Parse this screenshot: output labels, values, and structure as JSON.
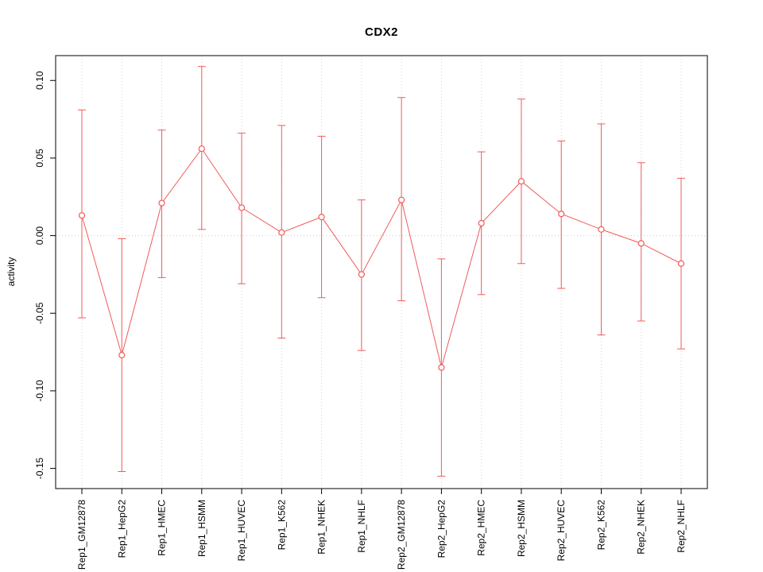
{
  "title": "CDX2",
  "axes": {
    "ylabel": "activity"
  },
  "colors": {
    "series_red": "#f15b5b",
    "grid": "#d4d4d4",
    "zero_line": "#cccccc",
    "axis": "#000000"
  },
  "chart_data": {
    "type": "line",
    "title": "CDX2",
    "xlabel": "",
    "ylabel": "activity",
    "legend": "none",
    "grid": "vertical dotted gridlines at each category plus dotted horizontal line at 0",
    "marker": "open-circle",
    "error_bars": true,
    "ylim": [
      -0.163,
      0.116
    ],
    "yticks": [
      -0.15,
      -0.1,
      -0.05,
      0.0,
      0.05,
      0.1
    ],
    "categories": [
      "Rep1_GM12878",
      "Rep1_HepG2",
      "Rep1_HMEC",
      "Rep1_HSMM",
      "Rep1_HUVEC",
      "Rep1_K562",
      "Rep1_NHEK",
      "Rep1_NHLF",
      "Rep2_GM12878",
      "Rep2_HepG2",
      "Rep2_HMEC",
      "Rep2_HSMM",
      "Rep2_HUVEC",
      "Rep2_K562",
      "Rep2_NHEK",
      "Rep2_NHLF"
    ],
    "series": [
      {
        "name": "activity",
        "values": [
          0.013,
          -0.077,
          0.021,
          0.056,
          0.018,
          0.002,
          0.012,
          -0.025,
          0.023,
          -0.085,
          0.008,
          0.035,
          0.014,
          0.004,
          -0.005,
          -0.018
        ],
        "upper": [
          0.081,
          -0.002,
          0.068,
          0.109,
          0.066,
          0.071,
          0.064,
          0.023,
          0.089,
          -0.015,
          0.054,
          0.088,
          0.061,
          0.072,
          0.047,
          0.037
        ],
        "lower": [
          -0.053,
          -0.152,
          -0.027,
          0.004,
          -0.031,
          -0.066,
          -0.04,
          -0.074,
          -0.042,
          -0.155,
          -0.038,
          -0.018,
          -0.034,
          -0.064,
          -0.055,
          -0.073
        ]
      }
    ]
  }
}
